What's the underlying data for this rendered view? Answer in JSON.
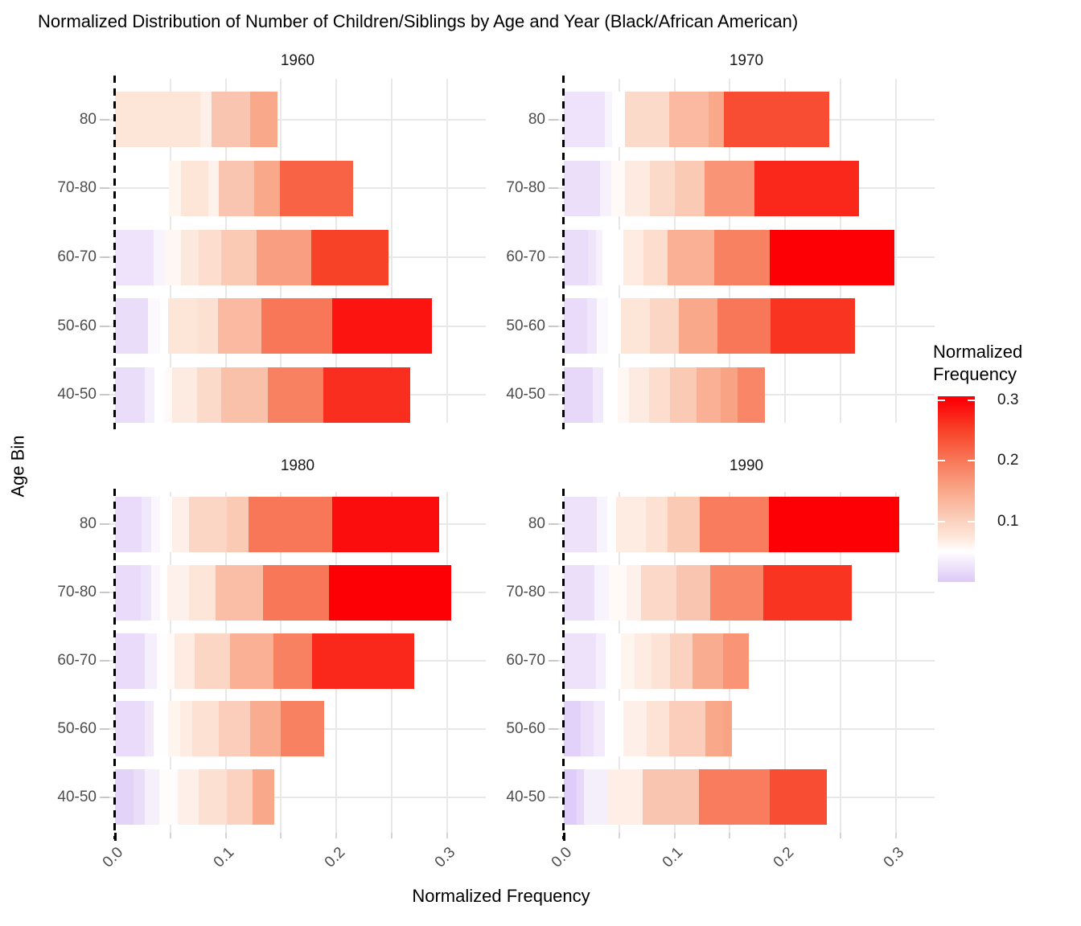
{
  "title": "Normalized Distribution of Number of Children/Siblings by Age and Year (Black/African American)",
  "axes": {
    "x_title": "Normalized Frequency",
    "y_title": "Age Bin",
    "x_ticks": [
      "0.0",
      "0.1",
      "0.2",
      "0.3"
    ],
    "x_tick_values": [
      0,
      0.1,
      0.2,
      0.3
    ],
    "x_range": [
      -0.005,
      0.335
    ]
  },
  "grid": {
    "v_lines": [
      0.05,
      0.1,
      0.15,
      0.2,
      0.25,
      0.3
    ]
  },
  "legend": {
    "title_lines": "Normalized\nFrequency",
    "max": 0.306,
    "ticks": [
      {
        "label": "0.3",
        "v": 0.3
      },
      {
        "label": "0.2",
        "v": 0.2
      },
      {
        "label": "0.1",
        "v": 0.1
      }
    ]
  },
  "gradient_stops": [
    [
      0.0,
      "#dcc8f7"
    ],
    [
      0.03,
      "#f1e8fb"
    ],
    [
      0.05,
      "#ffffff"
    ],
    [
      0.075,
      "#fde5d8"
    ],
    [
      0.1,
      "#fbd2c0"
    ],
    [
      0.15,
      "#f9a88a"
    ],
    [
      0.2,
      "#f87758"
    ],
    [
      0.25,
      "#f84228"
    ],
    [
      0.3,
      "#fc0006"
    ]
  ],
  "chart_data": {
    "type": "bar",
    "orientation": "horizontal",
    "note": "Each row is an overlay of segments; 'to' is the segment right edge (normalized frequency), 'v' is the value driving the diverging purple-white-red fill.",
    "age_bins": [
      "80",
      "70-80",
      "60-70",
      "50-60",
      "40-50"
    ],
    "facets": [
      {
        "year": "1960",
        "rows": [
          {
            "label": "80",
            "start": 0,
            "bands": [
              [
                0.077,
                0.075
              ],
              [
                0.087,
                0.065
              ],
              [
                0.122,
                0.115
              ],
              [
                0.147,
                0.15
              ]
            ]
          },
          {
            "label": "70-80",
            "start": 0.049,
            "bands": [
              [
                0.06,
                0.06
              ],
              [
                0.084,
                0.075
              ],
              [
                0.094,
                0.062
              ],
              [
                0.126,
                0.115
              ],
              [
                0.149,
                0.15
              ],
              [
                0.215,
                0.22
              ]
            ]
          },
          {
            "label": "60-70",
            "start": 0,
            "bands": [
              [
                0.035,
                0.025
              ],
              [
                0.046,
                0.04
              ],
              [
                0.06,
                0.058
              ],
              [
                0.076,
                0.072
              ],
              [
                0.096,
                0.085
              ],
              [
                0.128,
                0.11
              ],
              [
                0.177,
                0.16
              ],
              [
                0.247,
                0.25
              ]
            ]
          },
          {
            "label": "50-60",
            "start": 0,
            "bands": [
              [
                0.03,
                0.02
              ],
              [
                0.041,
                0.045
              ],
              [
                0.048,
                0.05
              ],
              [
                0.074,
                0.075
              ],
              [
                0.093,
                0.082
              ],
              [
                0.132,
                0.13
              ],
              [
                0.196,
                0.2
              ],
              [
                0.286,
                0.285
              ]
            ]
          },
          {
            "label": "40-50",
            "start": 0,
            "bands": [
              [
                0.027,
                0.02
              ],
              [
                0.036,
                0.035
              ],
              [
                0.045,
                0.05
              ],
              [
                0.052,
                0.055
              ],
              [
                0.074,
                0.07
              ],
              [
                0.096,
                0.09
              ],
              [
                0.138,
                0.12
              ],
              [
                0.188,
                0.19
              ],
              [
                0.267,
                0.265
              ]
            ]
          }
        ]
      },
      {
        "year": "1970",
        "rows": [
          {
            "label": "80",
            "start": 0,
            "bands": [
              [
                0.037,
                0.025
              ],
              [
                0.044,
                0.04
              ],
              [
                0.055,
                0.05
              ],
              [
                0.095,
                0.09
              ],
              [
                0.131,
                0.13
              ],
              [
                0.145,
                0.15
              ],
              [
                0.24,
                0.24
              ]
            ]
          },
          {
            "label": "70-80",
            "start": 0,
            "bands": [
              [
                0.033,
                0.022
              ],
              [
                0.043,
                0.038
              ],
              [
                0.055,
                0.055
              ],
              [
                0.078,
                0.07
              ],
              [
                0.1,
                0.09
              ],
              [
                0.127,
                0.11
              ],
              [
                0.172,
                0.17
              ],
              [
                0.267,
                0.27
              ]
            ]
          },
          {
            "label": "60-70",
            "start": 0,
            "bands": [
              [
                0.022,
                0.02
              ],
              [
                0.029,
                0.027
              ],
              [
                0.035,
                0.038
              ],
              [
                0.054,
                0.05
              ],
              [
                0.072,
                0.068
              ],
              [
                0.094,
                0.085
              ],
              [
                0.136,
                0.14
              ],
              [
                0.186,
                0.19
              ],
              [
                0.299,
                0.3
              ]
            ]
          },
          {
            "label": "50-60",
            "start": 0,
            "bands": [
              [
                0.021,
                0.018
              ],
              [
                0.03,
                0.028
              ],
              [
                0.04,
                0.045
              ],
              [
                0.052,
                0.05
              ],
              [
                0.078,
                0.075
              ],
              [
                0.104,
                0.095
              ],
              [
                0.139,
                0.15
              ],
              [
                0.187,
                0.2
              ],
              [
                0.263,
                0.26
              ]
            ]
          },
          {
            "label": "40-50",
            "start": 0,
            "bands": [
              [
                0.026,
                0.015
              ],
              [
                0.036,
                0.03
              ],
              [
                0.049,
                0.05
              ],
              [
                0.059,
                0.058
              ],
              [
                0.077,
                0.07
              ],
              [
                0.096,
                0.085
              ],
              [
                0.12,
                0.11
              ],
              [
                0.142,
                0.14
              ],
              [
                0.157,
                0.155
              ],
              [
                0.182,
                0.185
              ]
            ]
          }
        ]
      },
      {
        "year": "1980",
        "rows": [
          {
            "label": "80",
            "start": 0,
            "bands": [
              [
                0.024,
                0.018
              ],
              [
                0.033,
                0.03
              ],
              [
                0.041,
                0.043
              ],
              [
                0.052,
                0.05
              ],
              [
                0.067,
                0.065
              ],
              [
                0.101,
                0.095
              ],
              [
                0.121,
                0.11
              ],
              [
                0.196,
                0.2
              ],
              [
                0.293,
                0.29
              ]
            ]
          },
          {
            "label": "70-80",
            "start": 0,
            "bands": [
              [
                0.023,
                0.018
              ],
              [
                0.033,
                0.027
              ],
              [
                0.041,
                0.042
              ],
              [
                0.047,
                0.05
              ],
              [
                0.067,
                0.063
              ],
              [
                0.091,
                0.075
              ],
              [
                0.134,
                0.125
              ],
              [
                0.193,
                0.2
              ],
              [
                0.304,
                0.3
              ]
            ]
          },
          {
            "label": "60-70",
            "start": 0,
            "bands": [
              [
                0.027,
                0.018
              ],
              [
                0.038,
                0.035
              ],
              [
                0.047,
                0.048
              ],
              [
                0.054,
                0.055
              ],
              [
                0.072,
                0.068
              ],
              [
                0.104,
                0.095
              ],
              [
                0.143,
                0.14
              ],
              [
                0.178,
                0.19
              ],
              [
                0.27,
                0.27
              ]
            ]
          },
          {
            "label": "50-60",
            "start": 0,
            "bands": [
              [
                0.027,
                0.018
              ],
              [
                0.035,
                0.032
              ],
              [
                0.048,
                0.048
              ],
              [
                0.059,
                0.06
              ],
              [
                0.07,
                0.068
              ],
              [
                0.094,
                0.08
              ],
              [
                0.122,
                0.105
              ],
              [
                0.15,
                0.145
              ],
              [
                0.189,
                0.19
              ]
            ]
          },
          {
            "label": "40-50",
            "start": 0,
            "bands": [
              [
                0.017,
                0.01
              ],
              [
                0.027,
                0.02
              ],
              [
                0.04,
                0.037
              ],
              [
                0.057,
                0.052
              ],
              [
                0.076,
                0.065
              ],
              [
                0.101,
                0.082
              ],
              [
                0.124,
                0.1
              ],
              [
                0.144,
                0.15
              ]
            ]
          }
        ]
      },
      {
        "year": "1990",
        "rows": [
          {
            "label": "80",
            "start": 0,
            "bands": [
              [
                0.03,
                0.024
              ],
              [
                0.039,
                0.04
              ],
              [
                0.047,
                0.05
              ],
              [
                0.074,
                0.068
              ],
              [
                0.094,
                0.08
              ],
              [
                0.123,
                0.11
              ],
              [
                0.185,
                0.195
              ],
              [
                0.303,
                0.3
              ]
            ]
          },
          {
            "label": "70-80",
            "start": 0,
            "bands": [
              [
                0.028,
                0.022
              ],
              [
                0.041,
                0.04
              ],
              [
                0.057,
                0.055
              ],
              [
                0.07,
                0.063
              ],
              [
                0.102,
                0.092
              ],
              [
                0.132,
                0.115
              ],
              [
                0.18,
                0.185
              ],
              [
                0.26,
                0.26
              ]
            ]
          },
          {
            "label": "60-70",
            "start": 0,
            "bands": [
              [
                0.029,
                0.024
              ],
              [
                0.038,
                0.035
              ],
              [
                0.052,
                0.05
              ],
              [
                0.064,
                0.06
              ],
              [
                0.079,
                0.068
              ],
              [
                0.096,
                0.078
              ],
              [
                0.116,
                0.1
              ],
              [
                0.144,
                0.145
              ],
              [
                0.167,
                0.17
              ]
            ]
          },
          {
            "label": "50-60",
            "start": 0,
            "bands": [
              [
                0.015,
                0.008
              ],
              [
                0.027,
                0.022
              ],
              [
                0.037,
                0.033
              ],
              [
                0.054,
                0.05
              ],
              [
                0.075,
                0.065
              ],
              [
                0.095,
                0.078
              ],
              [
                0.128,
                0.105
              ],
              [
                0.144,
                0.15
              ],
              [
                0.152,
                0.155
              ]
            ]
          },
          {
            "label": "40-50",
            "start": 0,
            "bands": [
              [
                0.012,
                0.004
              ],
              [
                0.018,
                0.015
              ],
              [
                0.04,
                0.036
              ],
              [
                0.071,
                0.066
              ],
              [
                0.122,
                0.115
              ],
              [
                0.186,
                0.195
              ],
              [
                0.238,
                0.24
              ]
            ]
          }
        ]
      }
    ]
  }
}
